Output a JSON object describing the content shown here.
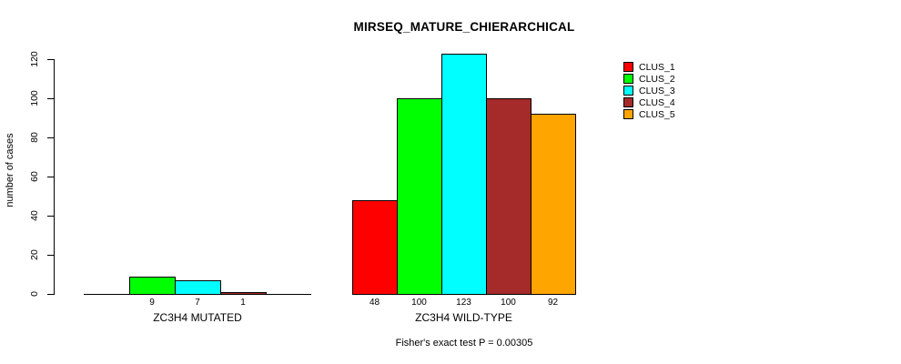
{
  "chart_data": {
    "type": "bar",
    "title": "MIRSEQ_MATURE_CHIERARCHICAL",
    "ylabel": "number of cases",
    "xlabel": "",
    "yticks": [
      0,
      20,
      40,
      60,
      80,
      100,
      120
    ],
    "ylim": [
      0,
      123
    ],
    "grid": false,
    "legend_position": "right",
    "legend": [
      "CLUS_1",
      "CLUS_2",
      "CLUS_3",
      "CLUS_4",
      "CLUS_5"
    ],
    "colors": [
      "#ff0000",
      "#00ff00",
      "#00ffff",
      "#a52a2a",
      "#ffa500"
    ],
    "categories": [
      "ZC3H4 MUTATED",
      "ZC3H4 WILD-TYPE"
    ],
    "series": [
      {
        "name": "CLUS_1",
        "values": [
          0,
          48
        ]
      },
      {
        "name": "CLUS_2",
        "values": [
          9,
          100
        ]
      },
      {
        "name": "CLUS_3",
        "values": [
          7,
          123
        ]
      },
      {
        "name": "CLUS_4",
        "values": [
          1,
          100
        ]
      },
      {
        "name": "CLUS_5",
        "values": [
          0,
          92
        ]
      }
    ],
    "groups": [
      {
        "label": "ZC3H4 MUTATED",
        "values": [
          0,
          9,
          7,
          1,
          0
        ],
        "bar_labels": [
          "",
          "9",
          "7",
          "1",
          ""
        ]
      },
      {
        "label": "ZC3H4 WILD-TYPE",
        "values": [
          48,
          100,
          123,
          100,
          92
        ],
        "bar_labels": [
          "48",
          "100",
          "123",
          "100",
          "92"
        ]
      }
    ],
    "annotation": "Fisher's exact test P = 0.00305"
  }
}
